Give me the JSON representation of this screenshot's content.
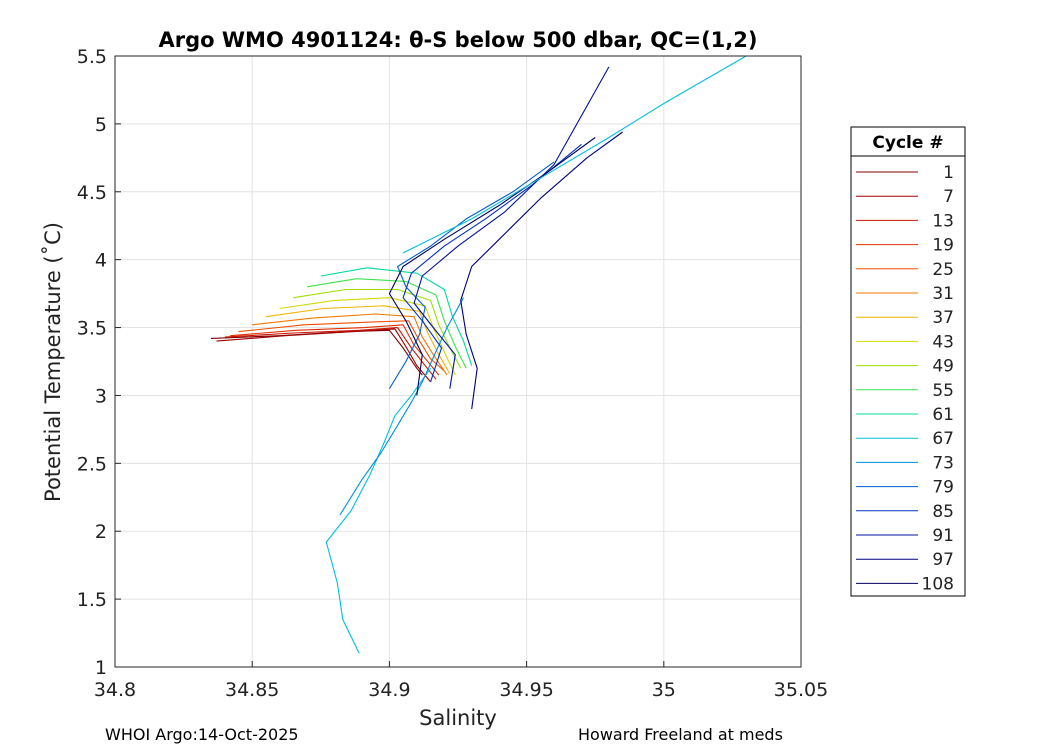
{
  "chart_data": {
    "type": "line",
    "title": "Argo WMO 4901124: θ-S below 500 dbar,  QC=(1,2)",
    "xlabel": "Salinity",
    "ylabel": "Potential Temperature (˚C)",
    "xlim": [
      34.8,
      35.05
    ],
    "ylim": [
      1,
      5.5
    ],
    "xticks": [
      34.8,
      34.85,
      34.9,
      34.95,
      35,
      35.05
    ],
    "xtick_labels": [
      "34.8",
      "34.85",
      "34.9",
      "34.95",
      "35",
      "35.05"
    ],
    "yticks": [
      1,
      1.5,
      2,
      2.5,
      3,
      3.5,
      4,
      4.5,
      5,
      5.5
    ],
    "ytick_labels": [
      "1",
      "1.5",
      "2",
      "2.5",
      "3",
      "3.5",
      "4",
      "4.5",
      "5",
      "5.5"
    ],
    "grid": true,
    "legend": {
      "title": "Cycle #",
      "location": "outside-right"
    },
    "series": [
      {
        "name": "1",
        "color": "#800000",
        "x": [
          34.835,
          34.86,
          34.885,
          34.9,
          34.905,
          34.91,
          34.912
        ],
        "y": [
          3.42,
          3.44,
          3.47,
          3.48,
          3.35,
          3.2,
          3.15
        ]
      },
      {
        "name": "7",
        "color": "#a00000",
        "x": [
          34.837,
          34.862,
          34.887,
          34.902,
          34.906,
          34.91,
          34.915
        ],
        "y": [
          3.4,
          3.44,
          3.47,
          3.49,
          3.36,
          3.22,
          3.1
        ]
      },
      {
        "name": "13",
        "color": "#c81400",
        "x": [
          34.84,
          34.865,
          34.889,
          34.903,
          34.908,
          34.913,
          34.917
        ],
        "y": [
          3.43,
          3.46,
          3.48,
          3.5,
          3.35,
          3.22,
          3.12
        ]
      },
      {
        "name": "19",
        "color": "#e03000",
        "x": [
          34.842,
          34.866,
          34.891,
          34.905,
          34.909,
          34.914,
          34.918
        ],
        "y": [
          3.44,
          3.48,
          3.5,
          3.52,
          3.37,
          3.25,
          3.15
        ]
      },
      {
        "name": "25",
        "color": "#f05000",
        "x": [
          34.845,
          34.869,
          34.893,
          34.907,
          34.911,
          34.915,
          34.92
        ],
        "y": [
          3.47,
          3.52,
          3.54,
          3.55,
          3.4,
          3.27,
          3.18
        ]
      },
      {
        "name": "31",
        "color": "#f07800",
        "x": [
          34.85,
          34.872,
          34.895,
          34.909,
          34.912,
          34.916,
          34.921
        ],
        "y": [
          3.52,
          3.57,
          3.6,
          3.58,
          3.43,
          3.3,
          3.15
        ]
      },
      {
        "name": "37",
        "color": "#f0b400",
        "x": [
          34.855,
          34.876,
          34.898,
          34.911,
          34.914,
          34.918,
          34.922
        ],
        "y": [
          3.58,
          3.64,
          3.66,
          3.62,
          3.46,
          3.3,
          3.16
        ]
      },
      {
        "name": "43",
        "color": "#d4d800",
        "x": [
          34.86,
          34.88,
          34.9,
          34.913,
          34.916,
          34.92,
          34.924
        ],
        "y": [
          3.64,
          3.7,
          3.72,
          3.66,
          3.5,
          3.32,
          3.15
        ]
      },
      {
        "name": "49",
        "color": "#9ee000",
        "x": [
          34.865,
          34.884,
          34.903,
          34.915,
          34.918,
          34.922,
          34.926
        ],
        "y": [
          3.72,
          3.78,
          3.78,
          3.7,
          3.52,
          3.35,
          3.2
        ]
      },
      {
        "name": "55",
        "color": "#40e050",
        "x": [
          34.87,
          34.888,
          34.906,
          34.917,
          34.92,
          34.924,
          34.928
        ],
        "y": [
          3.8,
          3.86,
          3.84,
          3.74,
          3.55,
          3.36,
          3.2
        ]
      },
      {
        "name": "61",
        "color": "#00d8a0",
        "x": [
          34.875,
          34.892,
          34.91,
          34.92,
          34.923,
          34.927,
          34.93
        ],
        "y": [
          3.88,
          3.94,
          3.9,
          3.78,
          3.58,
          3.4,
          3.22
        ]
      },
      {
        "name": "67",
        "color": "#00c0e0",
        "x": [
          34.889,
          34.883,
          34.881,
          34.877,
          34.886,
          34.893,
          34.898,
          34.902,
          34.908,
          34.915
        ],
        "y": [
          1.1,
          1.35,
          1.62,
          1.92,
          2.15,
          2.42,
          2.65,
          2.85,
          3.0,
          3.2
        ]
      },
      {
        "name": "73",
        "color": "#0090e0",
        "x": [
          34.882,
          34.89,
          34.897,
          34.903,
          34.908,
          34.912,
          34.916,
          34.921,
          34.927
        ],
        "y": [
          2.12,
          2.38,
          2.58,
          2.78,
          2.95,
          3.1,
          3.28,
          3.5,
          3.72
        ]
      },
      {
        "name": "79",
        "color": "#0060d0",
        "x": [
          34.9,
          34.906,
          34.911,
          34.913,
          34.906,
          34.903,
          34.915,
          34.928,
          34.945,
          34.96
        ],
        "y": [
          3.05,
          3.25,
          3.45,
          3.65,
          3.8,
          3.95,
          4.1,
          4.3,
          4.5,
          4.72
        ]
      },
      {
        "name": "85",
        "color": "#0030c0",
        "x": [
          34.915,
          34.919,
          34.912,
          34.905,
          34.908,
          34.92,
          34.935,
          34.952,
          34.97
        ],
        "y": [
          3.1,
          3.35,
          3.55,
          3.72,
          3.9,
          4.1,
          4.3,
          4.55,
          4.85
        ]
      },
      {
        "name": "91",
        "color": "#0010a0",
        "x": [
          34.922,
          34.924,
          34.916,
          34.909,
          34.912,
          34.925,
          34.942,
          34.96,
          34.98
        ],
        "y": [
          3.05,
          3.3,
          3.5,
          3.68,
          3.88,
          4.1,
          4.35,
          4.7,
          5.42
        ]
      },
      {
        "name": "97",
        "color": "#000080",
        "x": [
          34.93,
          34.932,
          34.928,
          34.926,
          34.93,
          34.94,
          34.955,
          34.972,
          34.985
        ],
        "y": [
          2.9,
          3.2,
          3.45,
          3.7,
          3.95,
          4.15,
          4.45,
          4.75,
          4.94
        ]
      },
      {
        "name": "108",
        "color": "#000060",
        "x": [
          34.91,
          34.912,
          34.906,
          34.9,
          34.905,
          34.92,
          34.94,
          34.958,
          34.975
        ],
        "y": [
          3.0,
          3.3,
          3.55,
          3.75,
          3.95,
          4.15,
          4.4,
          4.65,
          4.9
        ]
      },
      {
        "name": "",
        "color": "#00c0e0",
        "x": [
          34.905,
          34.93,
          34.955,
          34.98,
          35.0,
          35.03
        ],
        "y": [
          4.05,
          4.3,
          4.6,
          4.9,
          5.15,
          5.5
        ]
      }
    ]
  },
  "footer": {
    "left": "WHOI Argo:14-Oct-2025",
    "right": "Howard Freeland at meds"
  }
}
